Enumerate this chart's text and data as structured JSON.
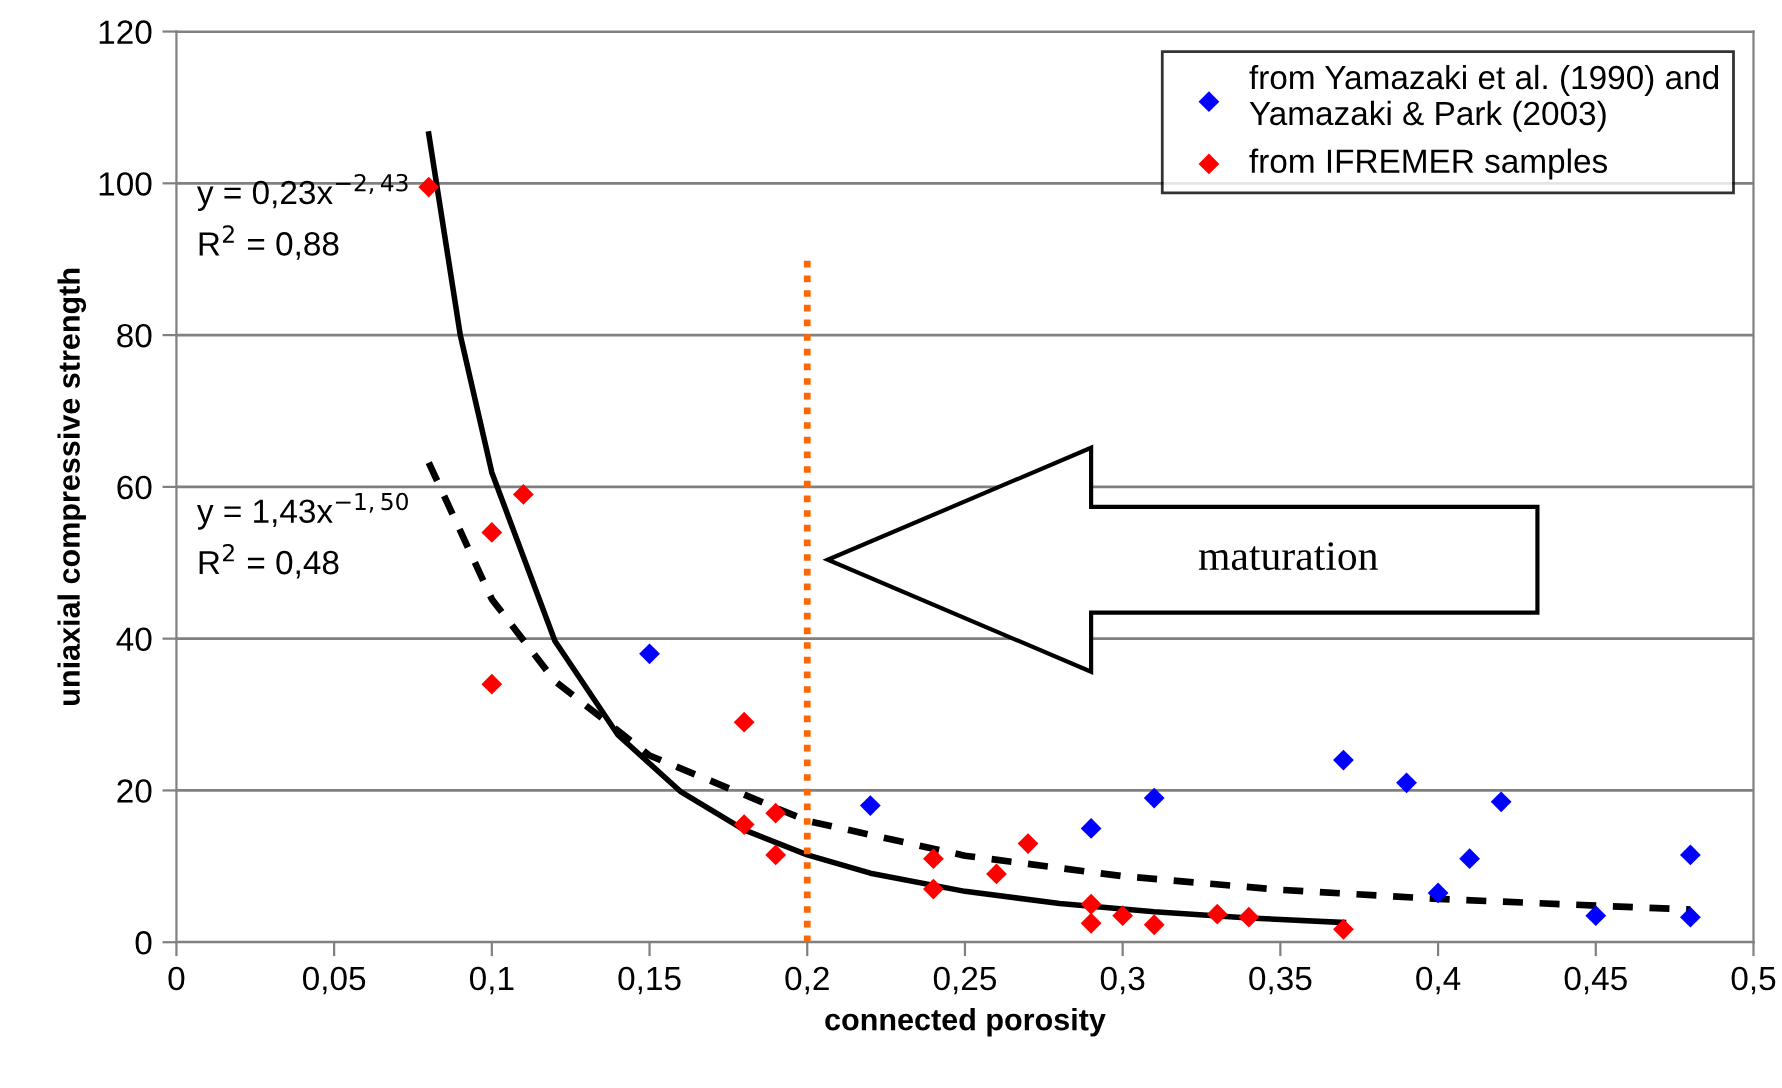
{
  "chart_data": {
    "type": "scatter",
    "xlabel": "connected porosity",
    "ylabel": "uniaxial compressive strength",
    "xlim": [
      0,
      0.5
    ],
    "ylim": [
      0,
      120
    ],
    "xticks": [
      0,
      {
        "value": 0.05,
        "label": "0,05"
      },
      {
        "value": 0.1,
        "label": "0,1"
      },
      {
        "value": 0.15,
        "label": "0,15"
      },
      {
        "value": 0.2,
        "label": "0,2"
      },
      {
        "value": 0.25,
        "label": "0,25"
      },
      {
        "value": 0.3,
        "label": "0,3"
      },
      {
        "value": 0.35,
        "label": "0,35"
      },
      {
        "value": 0.4,
        "label": "0,4"
      },
      {
        "value": 0.45,
        "label": "0,45"
      },
      {
        "value": 0.5,
        "label": "0,5"
      }
    ],
    "yticks": [
      0,
      20,
      40,
      60,
      80,
      100,
      120
    ],
    "grid": "y",
    "legend": "top right",
    "series": [
      {
        "name": "from Yamazaki et al. (1990) and\nYamazaki & Park (2003)",
        "color": "#0000ff",
        "marker": "diamond",
        "x": [
          0.15,
          0.22,
          0.29,
          0.31,
          0.37,
          0.39,
          0.4,
          0.41,
          0.42,
          0.45,
          0.48,
          0.48
        ],
        "values": [
          38,
          18,
          15,
          19,
          24,
          21,
          6.5,
          11,
          18.5,
          3.5,
          11.5,
          3.3
        ]
      },
      {
        "name": "from IFREMER samples",
        "color": "#ff0000",
        "marker": "diamond",
        "x": [
          0.08,
          0.1,
          0.11,
          0.1,
          0.18,
          0.18,
          0.19,
          0.19,
          0.24,
          0.24,
          0.26,
          0.27,
          0.29,
          0.29,
          0.3,
          0.31,
          0.33,
          0.34,
          0.37
        ],
        "values": [
          99.5,
          54,
          59,
          34,
          29,
          15.5,
          17,
          11.5,
          11,
          7,
          9,
          13,
          5,
          2.5,
          3.5,
          2.3,
          3.7,
          3.3,
          1.7
        ]
      },
      {
        "type": "line",
        "color": "#000000",
        "line_style": "solid",
        "x": [
          0.08,
          0.09,
          0.1,
          0.12,
          0.14,
          0.16,
          0.18,
          0.2,
          0.22,
          0.25,
          0.28,
          0.31,
          0.34,
          0.37
        ],
        "values": [
          106.5,
          80,
          61.9,
          39.7,
          27.3,
          19.8,
          14.8,
          11.5,
          9.1,
          6.7,
          5.1,
          4.0,
          3.2,
          2.6
        ]
      },
      {
        "type": "line",
        "color": "#000000",
        "line_style": "dashed",
        "x": [
          0.08,
          0.1,
          0.12,
          0.15,
          0.2,
          0.25,
          0.3,
          0.35,
          0.4,
          0.48
        ],
        "values": [
          63.2,
          45.2,
          34.4,
          24.6,
          16.0,
          11.4,
          8.7,
          6.9,
          5.7,
          4.3
        ]
      },
      {
        "type": "line",
        "color": "#ff6600",
        "line_style": "dotted",
        "x": [
          0.2,
          0.2
        ],
        "values": [
          0,
          90
        ]
      }
    ],
    "annotations": [
      "y = 0,23x$^{−2,43}$\nR$^{2}$ = 0,88",
      "y = 1,43x$^{−1,50}$\nR$^{2}$ = 0,48",
      "maturation"
    ]
  }
}
